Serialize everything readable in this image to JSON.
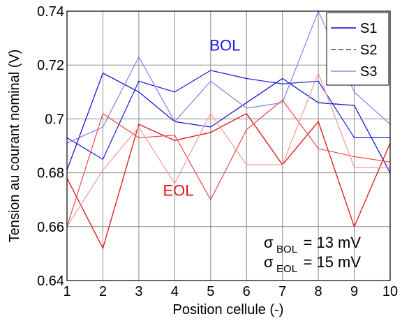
{
  "chart_data": {
    "type": "line",
    "xlabel": "Position cellule (-)",
    "ylabel": "Tension au courant nominal (V)",
    "xlim": [
      1,
      10
    ],
    "ylim": [
      0.64,
      0.74
    ],
    "grid": true,
    "legend_placement": "top-right",
    "x": [
      1,
      2,
      3,
      4,
      5,
      6,
      7,
      8,
      9,
      10
    ],
    "x_ticks": [
      "1",
      "2",
      "3",
      "4",
      "5",
      "6",
      "7",
      "8",
      "9",
      "10"
    ],
    "y_ticks": [
      "0.64",
      "0.66",
      "0.68",
      "0.7",
      "0.72",
      "0.74"
    ],
    "y_tick_values": [
      0.64,
      0.66,
      0.68,
      0.7,
      0.72,
      0.74
    ],
    "legend": [
      {
        "label": "S1",
        "style": "solid",
        "color": "#0000cc"
      },
      {
        "label": "S2",
        "style": "dashed",
        "color": "#4a4a88"
      },
      {
        "label": "S3",
        "style": "solid",
        "color": "#8c8cf0"
      }
    ],
    "series": [
      {
        "name": "S1",
        "group": "BOL",
        "color": "#1515d6",
        "width": 1.3,
        "values": [
          0.681,
          0.717,
          0.71,
          0.699,
          0.697,
          0.706,
          0.715,
          0.706,
          0.705,
          0.68
        ]
      },
      {
        "name": "S2",
        "group": "BOL",
        "color": "#1a1ae0",
        "width": 1.2,
        "values": [
          0.693,
          0.685,
          0.714,
          0.71,
          0.718,
          0.715,
          0.713,
          0.714,
          0.693,
          0.693
        ]
      },
      {
        "name": "S3",
        "group": "BOL",
        "color": "#8080ee",
        "width": 1.2,
        "values": [
          0.691,
          0.697,
          0.723,
          0.699,
          0.714,
          0.704,
          0.706,
          0.74,
          0.71,
          0.698
        ]
      },
      {
        "name": "S1",
        "group": "EOL",
        "color": "#e01010",
        "width": 1.3,
        "values": [
          0.678,
          0.652,
          0.698,
          0.692,
          0.695,
          0.702,
          0.683,
          0.699,
          0.66,
          0.691
        ]
      },
      {
        "name": "S2",
        "group": "EOL",
        "color": "#ec4a4a",
        "width": 1.2,
        "values": [
          0.66,
          0.702,
          0.693,
          0.694,
          0.67,
          0.696,
          0.707,
          0.689,
          0.686,
          0.684
        ]
      },
      {
        "name": "S3",
        "group": "EOL",
        "color": "#f49a9a",
        "width": 1.2,
        "values": [
          0.66,
          0.681,
          0.697,
          0.676,
          0.702,
          0.683,
          0.683,
          0.717,
          0.682,
          0.682
        ]
      }
    ],
    "annotations": {
      "bol_label": {
        "text": "BOL",
        "color": "#1a1ae0",
        "x": 5.4,
        "y": 0.7253
      },
      "eol_label": {
        "text": "EOL",
        "color": "#e01010",
        "x": 4.1,
        "y": 0.6715
      },
      "sigma_bol": {
        "symbol": "σ",
        "subscript": "BOL",
        "text": "= 13 mV"
      },
      "sigma_eol": {
        "symbol": "σ",
        "subscript": "EOL",
        "text": "= 15 mV"
      }
    }
  }
}
